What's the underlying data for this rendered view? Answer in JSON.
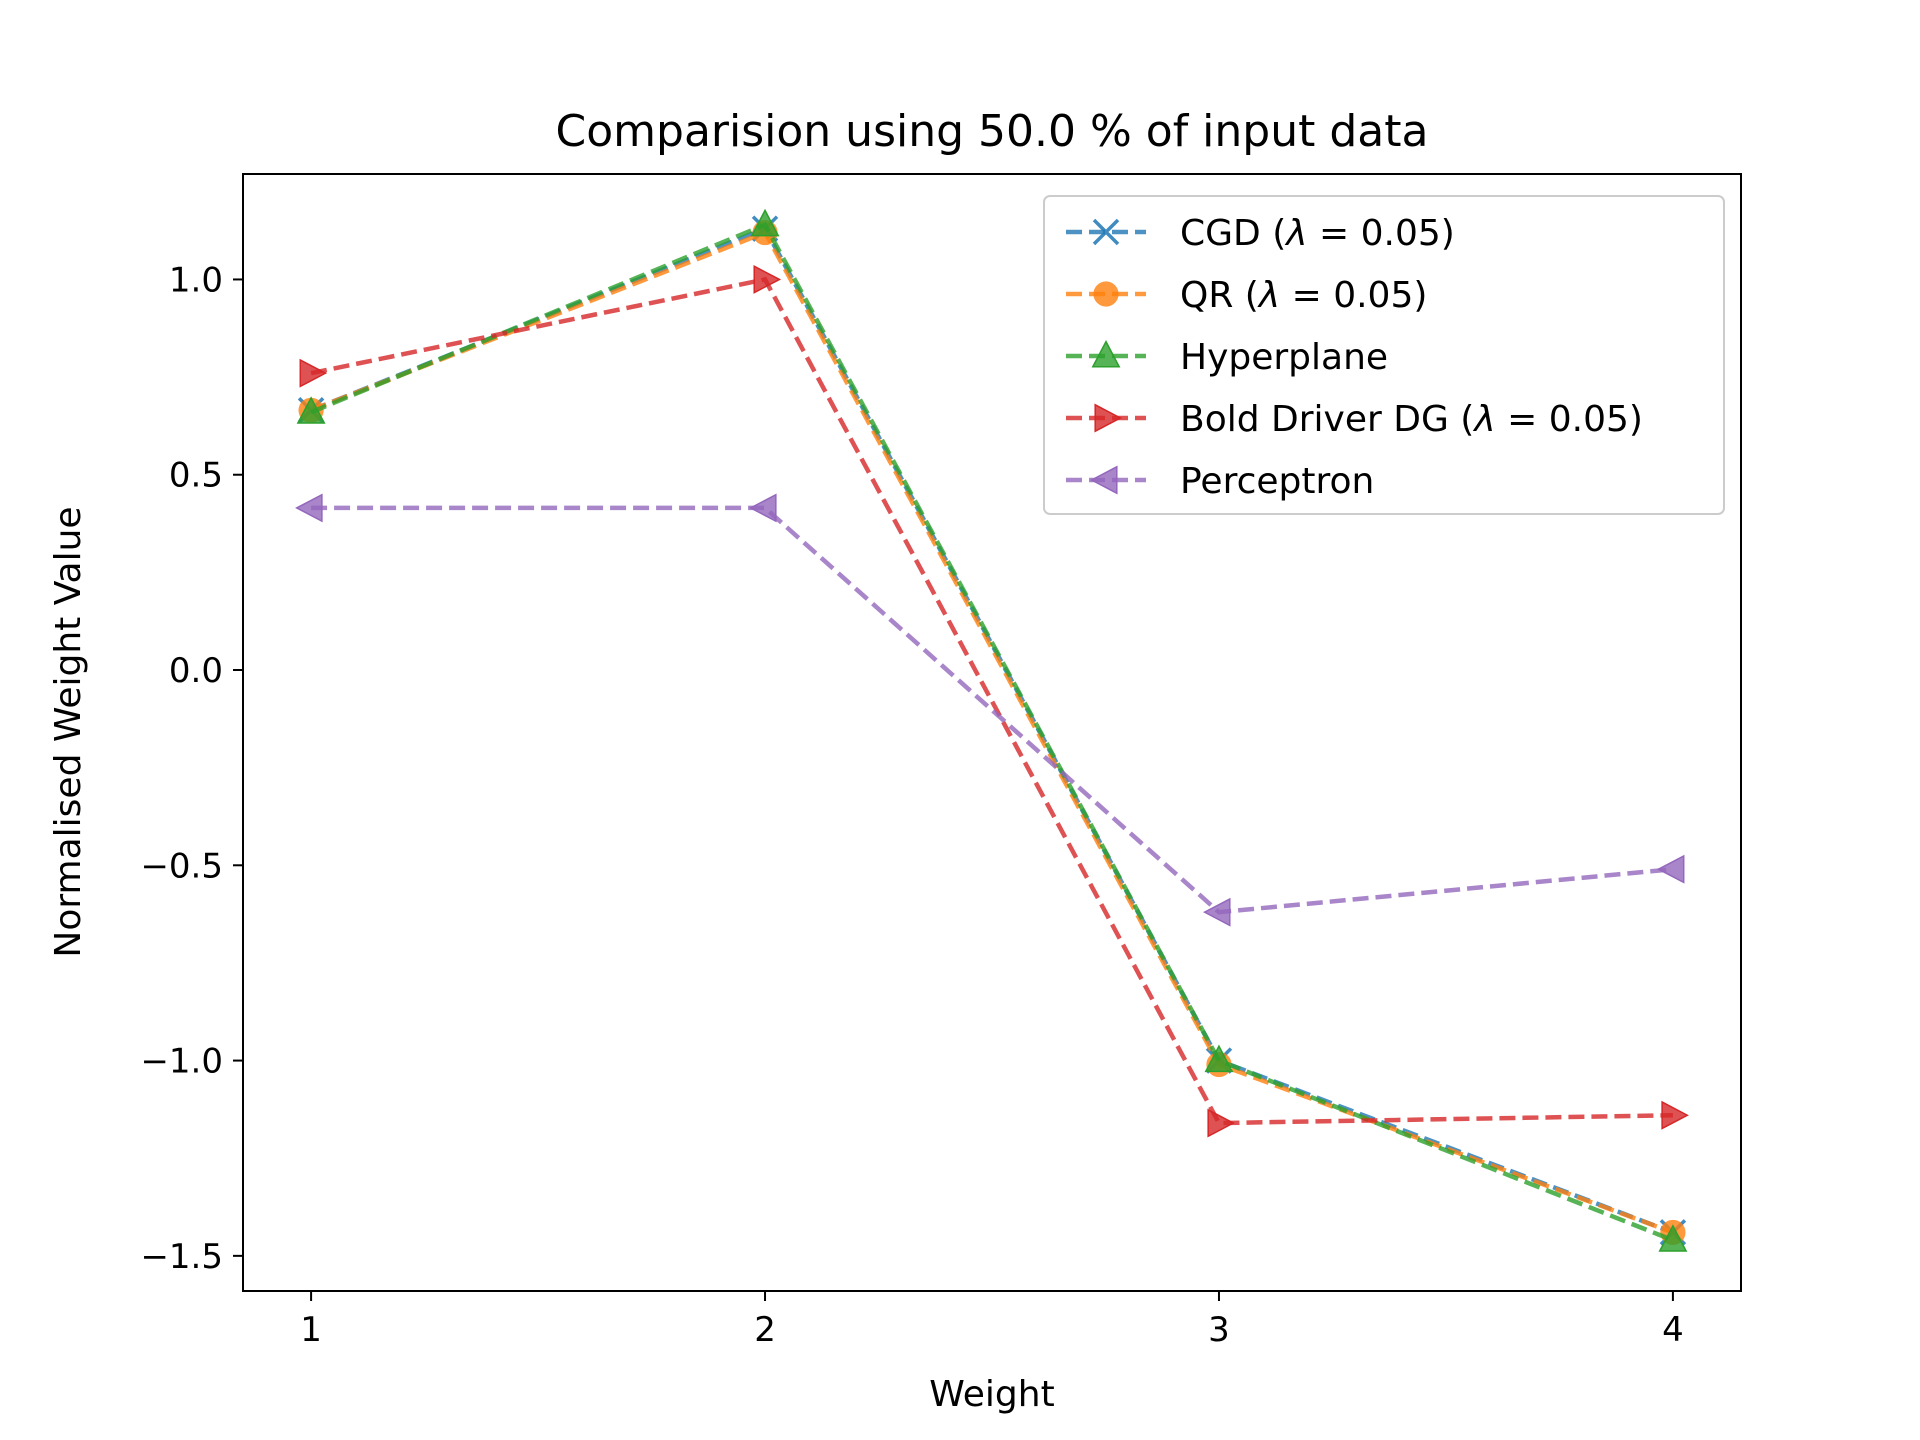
{
  "chart_data": {
    "type": "line",
    "title": "Comparision using 50.0 % of input data",
    "xlabel": "Weight",
    "ylabel": "Normalised Weight Value",
    "x": [
      1,
      2,
      3,
      4
    ],
    "xticks": [
      1,
      2,
      3,
      4
    ],
    "xtick_labels": [
      "1",
      "2",
      "3",
      "4"
    ],
    "yticks": [
      1.0,
      0.5,
      0.0,
      -0.5,
      -1.0,
      -1.5
    ],
    "ytick_labels": [
      "1.0",
      "0.5",
      "0.0",
      "−0.5",
      "−1.0",
      "−1.5"
    ],
    "xlim": [
      0.85,
      4.15
    ],
    "ylim": [
      -1.59,
      1.27
    ],
    "grid": false,
    "legend_position": "upper right",
    "series": [
      {
        "name": "CGD (λ = 0.05)",
        "legend_prefix": "CGD (",
        "legend_lambda": "λ",
        "legend_suffix": " = 0.05)",
        "values": [
          0.665,
          1.13,
          -1.0,
          -1.44
        ],
        "color": "#1f77b4",
        "marker": "x"
      },
      {
        "name": "QR (λ = 0.05)",
        "legend_prefix": "QR (",
        "legend_lambda": "λ",
        "legend_suffix": " = 0.05)",
        "values": [
          0.665,
          1.12,
          -1.01,
          -1.44
        ],
        "color": "#ff7f0e",
        "marker": "circle"
      },
      {
        "name": "Hyperplane",
        "legend_prefix": "Hyperplane",
        "legend_lambda": "",
        "legend_suffix": "",
        "values": [
          0.66,
          1.14,
          -1.0,
          -1.46
        ],
        "color": "#2ca02c",
        "marker": "triangle-up"
      },
      {
        "name": "Bold Driver DG (λ = 0.05)",
        "legend_prefix": "Bold Driver DG (",
        "legend_lambda": "λ",
        "legend_suffix": " = 0.05)",
        "values": [
          0.76,
          1.0,
          -1.16,
          -1.14
        ],
        "color": "#d62728",
        "marker": "triangle-right"
      },
      {
        "name": "Perceptron",
        "legend_prefix": "Perceptron",
        "legend_lambda": "",
        "legend_suffix": "",
        "values": [
          0.415,
          0.415,
          -0.62,
          -0.51
        ],
        "color": "#9467bd",
        "marker": "triangle-left"
      }
    ]
  }
}
